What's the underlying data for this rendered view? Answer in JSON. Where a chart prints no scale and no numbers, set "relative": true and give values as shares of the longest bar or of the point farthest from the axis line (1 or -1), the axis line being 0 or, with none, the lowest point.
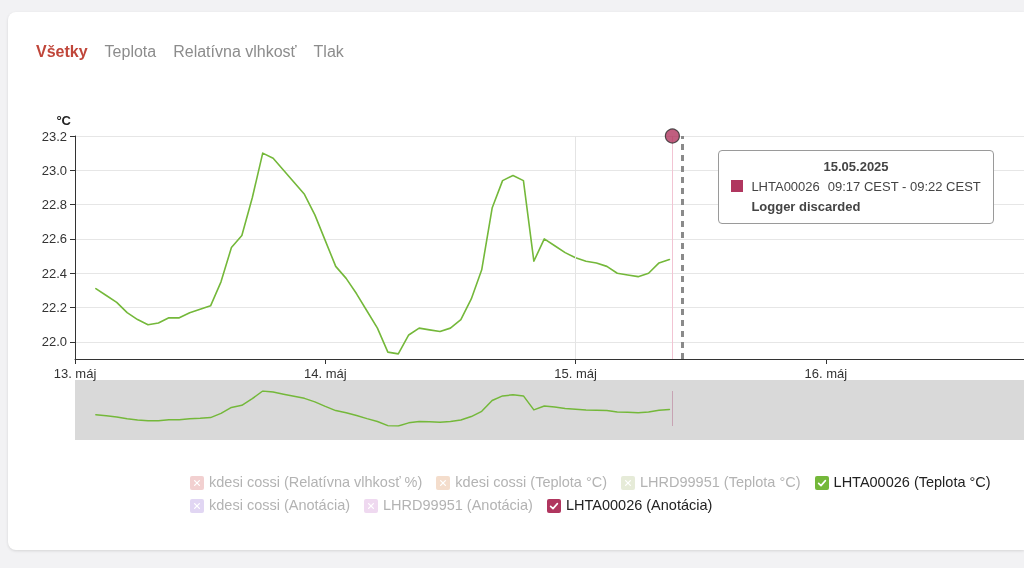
{
  "chart_data": [
    {
      "type": "line",
      "ylabel": "°C",
      "annotations": [
        "Všetky",
        "Teplota",
        "Relatívna vlhkosť",
        "Tlak",
        "15.05.2025",
        "LHTA00026",
        "09:17 CEST - 09:22 CEST",
        "Logger discarded"
      ],
      "x": [
        "2025-05-13T02:00",
        "2025-05-13T03:00",
        "2025-05-13T04:00",
        "2025-05-13T05:00",
        "2025-05-13T06:00",
        "2025-05-13T07:00",
        "2025-05-13T08:00",
        "2025-05-13T09:00",
        "2025-05-13T10:00",
        "2025-05-13T11:00",
        "2025-05-13T12:00",
        "2025-05-13T13:00",
        "2025-05-13T14:00",
        "2025-05-13T15:00",
        "2025-05-13T16:00",
        "2025-05-13T17:00",
        "2025-05-13T18:00",
        "2025-05-13T19:00",
        "2025-05-13T20:00",
        "2025-05-13T21:00",
        "2025-05-13T22:00",
        "2025-05-13T23:00",
        "2025-05-14T00:00",
        "2025-05-14T01:00",
        "2025-05-14T02:00",
        "2025-05-14T03:00",
        "2025-05-14T04:00",
        "2025-05-14T05:00",
        "2025-05-14T06:00",
        "2025-05-14T07:00",
        "2025-05-14T08:00",
        "2025-05-14T09:00",
        "2025-05-14T10:00",
        "2025-05-14T11:00",
        "2025-05-14T12:00",
        "2025-05-14T13:00",
        "2025-05-14T14:00",
        "2025-05-14T15:00",
        "2025-05-14T16:00",
        "2025-05-14T17:00",
        "2025-05-14T18:00",
        "2025-05-14T19:00",
        "2025-05-14T20:00",
        "2025-05-14T21:00",
        "2025-05-14T22:00",
        "2025-05-14T23:00",
        "2025-05-15T00:00",
        "2025-05-15T01:00",
        "2025-05-15T02:00",
        "2025-05-15T03:00",
        "2025-05-15T04:00",
        "2025-05-15T05:00",
        "2025-05-15T06:00",
        "2025-05-15T07:00",
        "2025-05-15T08:00",
        "2025-05-15T09:00"
      ],
      "series": [
        {
          "name": "kdesi cossi (Relatívna vlhkosť %)",
          "color": "#f2d0d0",
          "values": [
            null,
            null,
            null,
            null,
            null,
            null,
            null,
            null,
            null,
            null,
            null,
            null,
            null,
            null,
            null,
            null,
            null,
            null,
            null,
            null,
            null,
            null,
            null,
            null,
            null,
            null,
            null,
            null,
            null,
            null,
            null,
            null,
            null,
            null,
            null,
            null,
            null,
            null,
            null,
            null,
            null,
            null,
            null,
            null,
            null,
            null,
            null,
            null,
            null,
            null,
            null,
            null,
            null,
            null,
            null,
            null
          ]
        },
        {
          "name": "kdesi cossi (Teplota °C)",
          "color": "#f4ddcc",
          "values": [
            null,
            null,
            null,
            null,
            null,
            null,
            null,
            null,
            null,
            null,
            null,
            null,
            null,
            null,
            null,
            null,
            null,
            null,
            null,
            null,
            null,
            null,
            null,
            null,
            null,
            null,
            null,
            null,
            null,
            null,
            null,
            null,
            null,
            null,
            null,
            null,
            null,
            null,
            null,
            null,
            null,
            null,
            null,
            null,
            null,
            null,
            null,
            null,
            null,
            null,
            null,
            null,
            null,
            null,
            null,
            null
          ]
        },
        {
          "name": "LHRD99951 (Teplota °C)",
          "color": "#e6ebd8",
          "values": [
            null,
            null,
            null,
            null,
            null,
            null,
            null,
            null,
            null,
            null,
            null,
            null,
            null,
            null,
            null,
            null,
            null,
            null,
            null,
            null,
            null,
            null,
            null,
            null,
            null,
            null,
            null,
            null,
            null,
            null,
            null,
            null,
            null,
            null,
            null,
            null,
            null,
            null,
            null,
            null,
            null,
            null,
            null,
            null,
            null,
            null,
            null,
            null,
            null,
            null,
            null,
            null,
            null,
            null,
            null,
            null
          ]
        },
        {
          "name": "LHTA00026 (Teplota °C)",
          "color": "#74b83a",
          "values": [
            22.31,
            22.27,
            22.23,
            22.17,
            22.13,
            22.1,
            22.11,
            22.14,
            22.14,
            22.17,
            22.19,
            22.21,
            22.35,
            22.55,
            22.62,
            22.84,
            23.1,
            23.07,
            23.0,
            22.93,
            22.86,
            22.74,
            22.59,
            22.44,
            22.37,
            22.28,
            22.18,
            22.08,
            21.94,
            21.93,
            22.04,
            22.08,
            22.07,
            22.06,
            22.08,
            22.13,
            22.25,
            22.42,
            22.78,
            22.94,
            22.97,
            22.94,
            22.47,
            22.6,
            22.56,
            22.52,
            22.49,
            22.47,
            22.46,
            22.44,
            22.4,
            22.39,
            22.38,
            22.4,
            22.46,
            22.48
          ]
        },
        {
          "name": "kdesi cossi (Anotácia)",
          "color": "#e1d6f3",
          "type": "scatter",
          "values": [
            null,
            null,
            null,
            null,
            null,
            null,
            null,
            null,
            null,
            null,
            null,
            null,
            null,
            null,
            null,
            null,
            null,
            null,
            null,
            null,
            null,
            null,
            null,
            null,
            null,
            null,
            null,
            null,
            null,
            null,
            null,
            null,
            null,
            null,
            null,
            null,
            null,
            null,
            null,
            null,
            null,
            null,
            null,
            null,
            null,
            null,
            null,
            null,
            null,
            null,
            null,
            null,
            null,
            null,
            null,
            null
          ]
        },
        {
          "name": "LHRD99951 (Anotácia)",
          "color": "#efd9f0",
          "type": "scatter",
          "values": [
            null,
            null,
            null,
            null,
            null,
            null,
            null,
            null,
            null,
            null,
            null,
            null,
            null,
            null,
            null,
            null,
            null,
            null,
            null,
            null,
            null,
            null,
            null,
            null,
            null,
            null,
            null,
            null,
            null,
            null,
            null,
            null,
            null,
            null,
            null,
            null,
            null,
            null,
            null,
            null,
            null,
            null,
            null,
            null,
            null,
            null,
            null,
            null,
            null,
            null,
            null,
            null,
            null,
            null,
            null,
            null
          ]
        },
        {
          "name": "LHTA00026 (Anotácia)",
          "color": "#b0365f",
          "type": "scatter",
          "marker": "circle",
          "x": [
            "2025-05-15T09:17"
          ],
          "values": [
            23.2
          ]
        }
      ],
      "xlim": [
        "2025-05-13",
        "2025-05-16T19:00"
      ],
      "xticks": [
        {
          "value": "2025-05-13",
          "label": "13. máj"
        },
        {
          "value": "2025-05-14",
          "label": "14. máj"
        },
        {
          "value": "2025-05-15",
          "label": "15. máj"
        },
        {
          "value": "2025-05-16",
          "label": "16. máj"
        }
      ],
      "ylim": [
        21.9,
        23.2
      ],
      "yticks": [
        {
          "value": 22,
          "label": "22.0"
        },
        22.2,
        22.4,
        22.6,
        22.8,
        {
          "value": 23,
          "label": "23.0"
        },
        23.2
      ],
      "grid": "y",
      "legend": "bottom",
      "marker": "none",
      "ref_lines": [
        {
          "axis": "x",
          "value": "2025-05-15",
          "color": "#e4e4e4"
        },
        {
          "axis": "x",
          "value": "2025-05-15T09:17",
          "color": "#f2c4d3"
        },
        {
          "axis": "x",
          "value": "2025-05-15T10:15",
          "color": "#8a8a8a",
          "line_style": "dashed"
        }
      ]
    },
    {
      "type": "line",
      "relative": true,
      "tick_labels": false,
      "marker": "none",
      "color": "#74b83a",
      "x": [
        "2025-05-13T02:00",
        "2025-05-13T03:00",
        "2025-05-13T04:00",
        "2025-05-13T05:00",
        "2025-05-13T06:00",
        "2025-05-13T07:00",
        "2025-05-13T08:00",
        "2025-05-13T09:00",
        "2025-05-13T10:00",
        "2025-05-13T11:00",
        "2025-05-13T12:00",
        "2025-05-13T13:00",
        "2025-05-13T14:00",
        "2025-05-13T15:00",
        "2025-05-13T16:00",
        "2025-05-13T17:00",
        "2025-05-13T18:00",
        "2025-05-13T19:00",
        "2025-05-13T20:00",
        "2025-05-13T21:00",
        "2025-05-13T22:00",
        "2025-05-13T23:00",
        "2025-05-14T00:00",
        "2025-05-14T01:00",
        "2025-05-14T02:00",
        "2025-05-14T03:00",
        "2025-05-14T04:00",
        "2025-05-14T05:00",
        "2025-05-14T06:00",
        "2025-05-14T07:00",
        "2025-05-14T08:00",
        "2025-05-14T09:00",
        "2025-05-14T10:00",
        "2025-05-14T11:00",
        "2025-05-14T12:00",
        "2025-05-14T13:00",
        "2025-05-14T14:00",
        "2025-05-14T15:00",
        "2025-05-14T16:00",
        "2025-05-14T17:00",
        "2025-05-14T18:00",
        "2025-05-14T19:00",
        "2025-05-14T20:00",
        "2025-05-14T21:00",
        "2025-05-14T22:00",
        "2025-05-14T23:00",
        "2025-05-15T00:00",
        "2025-05-15T01:00",
        "2025-05-15T02:00",
        "2025-05-15T03:00",
        "2025-05-15T04:00",
        "2025-05-15T05:00",
        "2025-05-15T06:00",
        "2025-05-15T07:00",
        "2025-05-15T08:00",
        "2025-05-15T09:00"
      ],
      "values": [
        0.32,
        0.29,
        0.26,
        0.21,
        0.17,
        0.15,
        0.15,
        0.18,
        0.18,
        0.21,
        0.22,
        0.24,
        0.36,
        0.53,
        0.59,
        0.78,
        1,
        0.97,
        0.91,
        0.85,
        0.79,
        0.69,
        0.56,
        0.44,
        0.38,
        0.3,
        0.21,
        0.13,
        0.01,
        0,
        0.09,
        0.13,
        0.12,
        0.11,
        0.13,
        0.17,
        0.27,
        0.42,
        0.73,
        0.86,
        0.89,
        0.86,
        0.46,
        0.57,
        0.54,
        0.5,
        0.48,
        0.46,
        0.45,
        0.44,
        0.4,
        0.39,
        0.38,
        0.4,
        0.45,
        0.47
      ],
      "xlim": [
        "2025-05-13",
        "2025-05-16T19:00"
      ],
      "ref_lines": [
        {
          "axis": "x",
          "value": "2025-05-15T09:17",
          "color": "#c7a3b3"
        }
      ]
    }
  ]
}
